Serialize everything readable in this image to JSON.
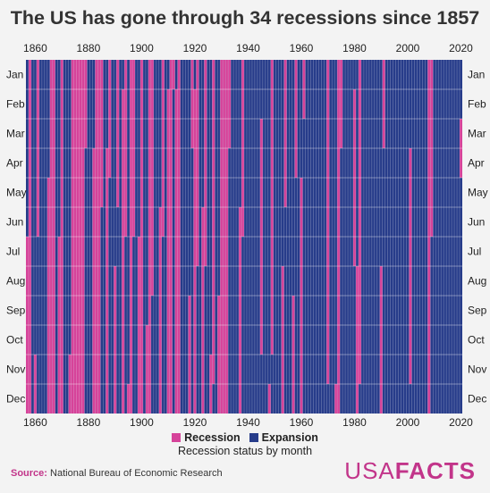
{
  "title": "The US has gone through 34 recessions since 1857",
  "chart_data": {
    "type": "heatmap",
    "x_start": "1857-01",
    "x_end": "2020-12",
    "x_ticks": [
      "1860",
      "1880",
      "1900",
      "1920",
      "1940",
      "1960",
      "1980",
      "2000",
      "2020"
    ],
    "months": [
      "Jan",
      "Feb",
      "Mar",
      "Apr",
      "May",
      "Jun",
      "Jul",
      "Aug",
      "Sep",
      "Oct",
      "Nov",
      "Dec"
    ],
    "categories": [
      "Recession",
      "Expansion"
    ],
    "recessions": [
      {
        "start": "1857-07",
        "end": "1858-12"
      },
      {
        "start": "1860-11",
        "end": "1861-06"
      },
      {
        "start": "1865-05",
        "end": "1867-12"
      },
      {
        "start": "1869-07",
        "end": "1870-12"
      },
      {
        "start": "1873-11",
        "end": "1879-03"
      },
      {
        "start": "1882-04",
        "end": "1885-05"
      },
      {
        "start": "1887-04",
        "end": "1888-04"
      },
      {
        "start": "1890-08",
        "end": "1891-05"
      },
      {
        "start": "1893-02",
        "end": "1894-06"
      },
      {
        "start": "1895-12",
        "end": "1897-06"
      },
      {
        "start": "1899-07",
        "end": "1900-12"
      },
      {
        "start": "1902-10",
        "end": "1904-08"
      },
      {
        "start": "1907-06",
        "end": "1908-06"
      },
      {
        "start": "1910-02",
        "end": "1912-01"
      },
      {
        "start": "1913-02",
        "end": "1914-12"
      },
      {
        "start": "1918-09",
        "end": "1919-03"
      },
      {
        "start": "1920-02",
        "end": "1921-07"
      },
      {
        "start": "1923-06",
        "end": "1924-07"
      },
      {
        "start": "1926-11",
        "end": "1927-11"
      },
      {
        "start": "1929-09",
        "end": "1933-03"
      },
      {
        "start": "1937-06",
        "end": "1938-06"
      },
      {
        "start": "1945-03",
        "end": "1945-10"
      },
      {
        "start": "1948-12",
        "end": "1949-10"
      },
      {
        "start": "1953-08",
        "end": "1954-05"
      },
      {
        "start": "1957-09",
        "end": "1958-04"
      },
      {
        "start": "1960-05",
        "end": "1961-02"
      },
      {
        "start": "1970-01",
        "end": "1970-11"
      },
      {
        "start": "1973-12",
        "end": "1975-03"
      },
      {
        "start": "1980-02",
        "end": "1980-07"
      },
      {
        "start": "1981-08",
        "end": "1982-11"
      },
      {
        "start": "1990-08",
        "end": "1991-03"
      },
      {
        "start": "2001-04",
        "end": "2001-11"
      },
      {
        "start": "2008-01",
        "end": "2009-06"
      },
      {
        "start": "2020-03",
        "end": "2020-04"
      }
    ],
    "colors": {
      "recession": "#d6439a",
      "expansion": "#273c8a"
    },
    "grid": true,
    "legend_position": "bottom",
    "legend_title": "Recession status by month"
  },
  "source_label": "Source:",
  "source_text": "National Bureau of Economic Research",
  "logo_left": "USA",
  "logo_right": "FACTS"
}
